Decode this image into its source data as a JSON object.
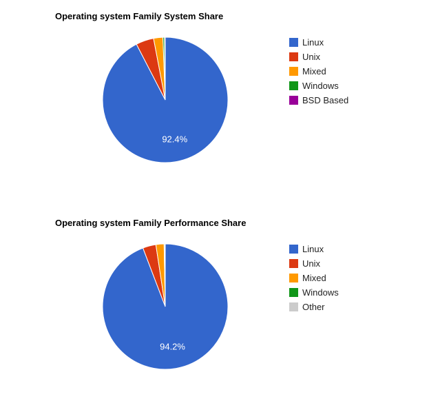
{
  "chart_data": [
    {
      "type": "pie",
      "title": "Operating system Family System Share",
      "legend_position": "right",
      "slices": [
        {
          "label": "Linux",
          "value": 92.4,
          "value_label": "92.4%",
          "color": "#3366cc"
        },
        {
          "label": "Unix",
          "value": 4.6,
          "value_label": "",
          "color": "#dc3912"
        },
        {
          "label": "Mixed",
          "value": 2.4,
          "value_label": "",
          "color": "#ff9900"
        },
        {
          "label": "Windows",
          "value": 0.4,
          "value_label": "",
          "color": "#109618"
        },
        {
          "label": "BSD Based",
          "value": 0.2,
          "value_label": "",
          "color": "#990099"
        }
      ]
    },
    {
      "type": "pie",
      "title": "Operating system Family Performance Share",
      "legend_position": "right",
      "slices": [
        {
          "label": "Linux",
          "value": 94.2,
          "value_label": "94.2%",
          "color": "#3366cc"
        },
        {
          "label": "Unix",
          "value": 3.4,
          "value_label": "",
          "color": "#dc3912"
        },
        {
          "label": "Mixed",
          "value": 2.1,
          "value_label": "",
          "color": "#ff9900"
        },
        {
          "label": "Windows",
          "value": 0.2,
          "value_label": "",
          "color": "#109618"
        },
        {
          "label": "Other",
          "value": 0.1,
          "value_label": "",
          "color": "#cccccc"
        }
      ]
    }
  ]
}
